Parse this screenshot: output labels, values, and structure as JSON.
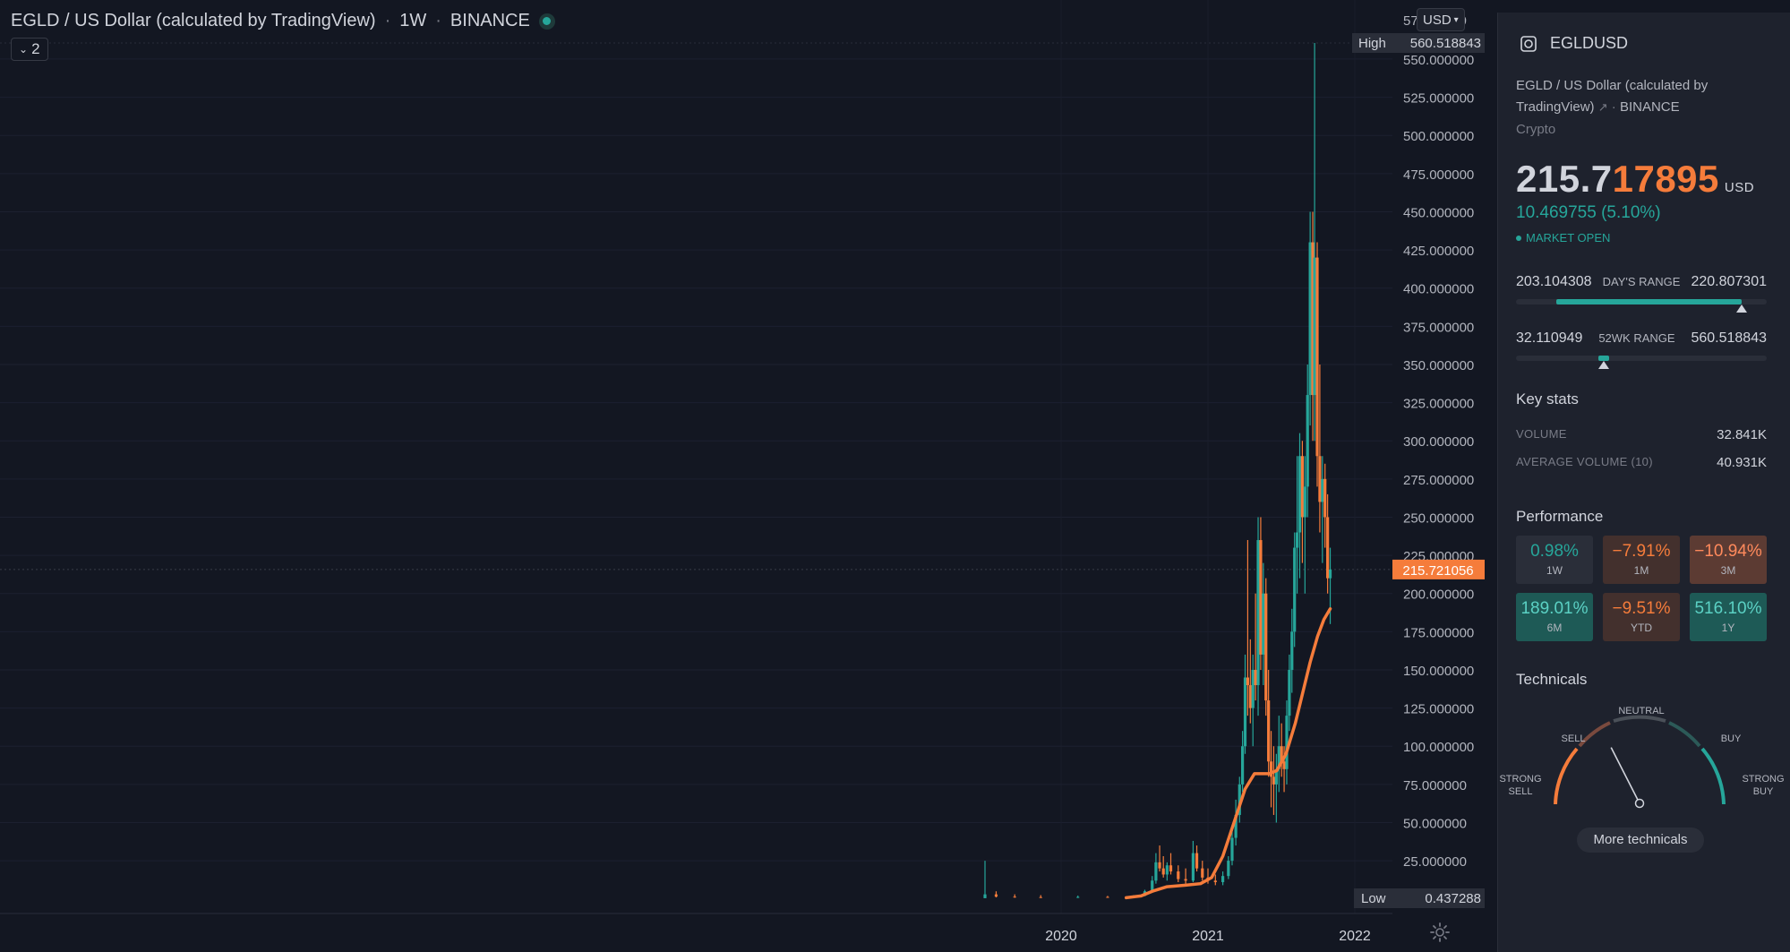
{
  "chart_header": {
    "title": "EGLD / US Dollar (calculated by TradingView)",
    "interval": "1W",
    "exchange": "BINANCE",
    "collapse_count": "2",
    "currency_button": "USD"
  },
  "chart_data": {
    "type": "candlestick",
    "x_tick_labels": [
      "2020",
      "2021",
      "2022"
    ],
    "y_tick_labels": [
      "25.000000",
      "50.000000",
      "75.000000",
      "100.000000",
      "125.000000",
      "150.000000",
      "175.000000",
      "200.000000",
      "225.000000",
      "250.000000",
      "275.000000",
      "300.000000",
      "325.000000",
      "350.000000",
      "375.000000",
      "400.000000",
      "425.000000",
      "450.000000",
      "475.000000",
      "500.000000",
      "525.000000",
      "550.000000"
    ],
    "y_ticks": [
      25,
      50,
      75,
      100,
      125,
      150,
      175,
      200,
      225,
      250,
      275,
      300,
      325,
      350,
      375,
      400,
      425,
      450,
      475,
      500,
      525,
      550
    ],
    "ylim": [
      0.437288,
      560.518843
    ],
    "high_label": "High",
    "high_value": "560.518843",
    "low_label": "Low",
    "low_value": "0.437288",
    "last_price": "215.721056",
    "overlapped_top_label": "57         00",
    "series": [
      {
        "type": "candles",
        "up_color": "#26a69a",
        "down_color": "#f57c3b",
        "candles": [
          {
            "t": 0.0,
            "o": 0.5,
            "h": 25,
            "l": 0.44,
            "c": 3.0
          },
          {
            "t": 0.03,
            "o": 3.0,
            "h": 5,
            "l": 1.0,
            "c": 1.5
          },
          {
            "t": 0.08,
            "o": 1.5,
            "h": 3,
            "l": 0.8,
            "c": 1.2
          },
          {
            "t": 0.15,
            "o": 1.2,
            "h": 2.5,
            "l": 0.7,
            "c": 1.0
          },
          {
            "t": 0.25,
            "o": 1.0,
            "h": 2.2,
            "l": 0.6,
            "c": 1.3
          },
          {
            "t": 0.33,
            "o": 1.3,
            "h": 2.0,
            "l": 0.9,
            "c": 1.1
          },
          {
            "t": 0.4,
            "o": 1.1,
            "h": 2.5,
            "l": 0.8,
            "c": 2.0
          },
          {
            "t": 0.43,
            "o": 2.0,
            "h": 6,
            "l": 1.8,
            "c": 5
          },
          {
            "t": 0.45,
            "o": 5,
            "h": 15,
            "l": 4,
            "c": 12
          },
          {
            "t": 0.46,
            "o": 12,
            "h": 30,
            "l": 10,
            "c": 24
          },
          {
            "t": 0.47,
            "o": 24,
            "h": 35,
            "l": 18,
            "c": 20
          },
          {
            "t": 0.48,
            "o": 20,
            "h": 28,
            "l": 14,
            "c": 16
          },
          {
            "t": 0.49,
            "o": 16,
            "h": 24,
            "l": 12,
            "c": 22
          },
          {
            "t": 0.5,
            "o": 22,
            "h": 30,
            "l": 16,
            "c": 18
          },
          {
            "t": 0.52,
            "o": 18,
            "h": 22,
            "l": 11,
            "c": 13
          },
          {
            "t": 0.54,
            "o": 13,
            "h": 20,
            "l": 10,
            "c": 12
          },
          {
            "t": 0.56,
            "o": 12,
            "h": 38,
            "l": 11,
            "c": 30
          },
          {
            "t": 0.57,
            "o": 30,
            "h": 35,
            "l": 18,
            "c": 20
          },
          {
            "t": 0.585,
            "o": 20,
            "h": 25,
            "l": 12,
            "c": 14
          },
          {
            "t": 0.6,
            "o": 14,
            "h": 20,
            "l": 10,
            "c": 12
          },
          {
            "t": 0.62,
            "o": 12,
            "h": 16,
            "l": 9,
            "c": 11
          },
          {
            "t": 0.64,
            "o": 11,
            "h": 18,
            "l": 9,
            "c": 15
          },
          {
            "t": 0.655,
            "o": 15,
            "h": 28,
            "l": 13,
            "c": 25
          },
          {
            "t": 0.665,
            "o": 25,
            "h": 45,
            "l": 22,
            "c": 40
          },
          {
            "t": 0.675,
            "o": 40,
            "h": 65,
            "l": 35,
            "c": 55
          },
          {
            "t": 0.685,
            "o": 55,
            "h": 80,
            "l": 50,
            "c": 75
          },
          {
            "t": 0.693,
            "o": 75,
            "h": 110,
            "l": 70,
            "c": 100
          },
          {
            "t": 0.7,
            "o": 100,
            "h": 160,
            "l": 95,
            "c": 145
          },
          {
            "t": 0.707,
            "o": 145,
            "h": 235,
            "l": 120,
            "c": 140
          },
          {
            "t": 0.714,
            "o": 140,
            "h": 170,
            "l": 115,
            "c": 125
          },
          {
            "t": 0.721,
            "o": 125,
            "h": 160,
            "l": 100,
            "c": 150
          },
          {
            "t": 0.728,
            "o": 150,
            "h": 200,
            "l": 130,
            "c": 140
          },
          {
            "t": 0.735,
            "o": 140,
            "h": 250,
            "l": 120,
            "c": 235
          },
          {
            "t": 0.742,
            "o": 235,
            "h": 250,
            "l": 150,
            "c": 160
          },
          {
            "t": 0.749,
            "o": 160,
            "h": 220,
            "l": 140,
            "c": 200
          },
          {
            "t": 0.756,
            "o": 200,
            "h": 210,
            "l": 120,
            "c": 130
          },
          {
            "t": 0.763,
            "o": 130,
            "h": 150,
            "l": 80,
            "c": 90
          },
          {
            "t": 0.77,
            "o": 90,
            "h": 110,
            "l": 60,
            "c": 80
          },
          {
            "t": 0.777,
            "o": 80,
            "h": 100,
            "l": 55,
            "c": 75
          },
          {
            "t": 0.784,
            "o": 75,
            "h": 95,
            "l": 50,
            "c": 85
          },
          {
            "t": 0.791,
            "o": 85,
            "h": 120,
            "l": 70,
            "c": 100
          },
          {
            "t": 0.798,
            "o": 100,
            "h": 115,
            "l": 80,
            "c": 90
          },
          {
            "t": 0.805,
            "o": 90,
            "h": 100,
            "l": 70,
            "c": 85
          },
          {
            "t": 0.812,
            "o": 85,
            "h": 130,
            "l": 75,
            "c": 120
          },
          {
            "t": 0.819,
            "o": 120,
            "h": 160,
            "l": 110,
            "c": 150
          },
          {
            "t": 0.826,
            "o": 150,
            "h": 190,
            "l": 135,
            "c": 175
          },
          {
            "t": 0.833,
            "o": 175,
            "h": 240,
            "l": 165,
            "c": 230
          },
          {
            "t": 0.84,
            "o": 230,
            "h": 290,
            "l": 200,
            "c": 240
          },
          {
            "t": 0.847,
            "o": 240,
            "h": 305,
            "l": 210,
            "c": 290
          },
          {
            "t": 0.854,
            "o": 290,
            "h": 300,
            "l": 220,
            "c": 250
          },
          {
            "t": 0.861,
            "o": 250,
            "h": 290,
            "l": 200,
            "c": 270
          },
          {
            "t": 0.868,
            "o": 270,
            "h": 350,
            "l": 250,
            "c": 330
          },
          {
            "t": 0.875,
            "o": 330,
            "h": 450,
            "l": 310,
            "c": 430
          },
          {
            "t": 0.882,
            "o": 430,
            "h": 450,
            "l": 300,
            "c": 330
          },
          {
            "t": 0.887,
            "o": 330,
            "h": 560.518843,
            "l": 300,
            "c": 420
          },
          {
            "t": 0.894,
            "o": 420,
            "h": 430,
            "l": 270,
            "c": 290
          },
          {
            "t": 0.901,
            "o": 290,
            "h": 350,
            "l": 240,
            "c": 260
          },
          {
            "t": 0.908,
            "o": 260,
            "h": 290,
            "l": 220,
            "c": 275
          },
          {
            "t": 0.915,
            "o": 275,
            "h": 285,
            "l": 230,
            "c": 250
          },
          {
            "t": 0.922,
            "o": 250,
            "h": 265,
            "l": 200,
            "c": 210
          },
          {
            "t": 0.929,
            "o": 210,
            "h": 230,
            "l": 180,
            "c": 215.721056
          }
        ]
      },
      {
        "type": "moving_average",
        "color": "#f57c3b",
        "points": [
          [
            0.38,
            0.8
          ],
          [
            0.42,
            2
          ],
          [
            0.45,
            5
          ],
          [
            0.49,
            8
          ],
          [
            0.54,
            9
          ],
          [
            0.58,
            10
          ],
          [
            0.61,
            14
          ],
          [
            0.64,
            28
          ],
          [
            0.67,
            50
          ],
          [
            0.7,
            72
          ],
          [
            0.725,
            82
          ],
          [
            0.745,
            82
          ],
          [
            0.765,
            82
          ],
          [
            0.785,
            84
          ],
          [
            0.81,
            95
          ],
          [
            0.835,
            115
          ],
          [
            0.855,
            135
          ],
          [
            0.875,
            155
          ],
          [
            0.895,
            172
          ],
          [
            0.912,
            183
          ],
          [
            0.929,
            190
          ]
        ]
      }
    ]
  },
  "panel": {
    "symbol": "EGLDUSD",
    "description": "EGLD / US Dollar (calculated by TradingView)",
    "exchange": "BINANCE",
    "type": "Crypto",
    "price_main": "215.7",
    "price_highlight": "17895",
    "currency": "USD",
    "change": "10.469755 (5.10%)",
    "market_status": "MARKET OPEN",
    "days_range": {
      "low": "203.104308",
      "label": "DAY'S RANGE",
      "high": "220.807301",
      "fill_from": 0.16,
      "fill_to": 0.9,
      "marker": 0.9
    },
    "wk52_range": {
      "low": "32.110949",
      "label": "52WK RANGE",
      "high": "560.518843",
      "fill_from": 0.33,
      "fill_to": 0.37,
      "marker": 0.35
    },
    "key_stats": {
      "title": "Key stats",
      "volume_label": "VOLUME",
      "volume": "32.841K",
      "avg_volume_label": "AVERAGE VOLUME (10)",
      "avg_volume": "40.931K"
    },
    "performance": {
      "title": "Performance",
      "cells": [
        {
          "value": "0.98%",
          "label": "1W",
          "kind": "neu"
        },
        {
          "value": "−7.91%",
          "label": "1M",
          "kind": "neg"
        },
        {
          "value": "−10.94%",
          "label": "3M",
          "kind": "neg strong"
        },
        {
          "value": "189.01%",
          "label": "6M",
          "kind": "pos strong"
        },
        {
          "value": "−9.51%",
          "label": "YTD",
          "kind": "neg"
        },
        {
          "value": "516.10%",
          "label": "1Y",
          "kind": "pos strong"
        }
      ]
    },
    "technicals": {
      "title": "Technicals",
      "labels": {
        "strong_sell": "STRONG\nSELL",
        "sell": "SELL",
        "neutral": "NEUTRAL",
        "buy": "BUY",
        "strong_buy": "STRONG\nBUY"
      },
      "needle_value": 0.35,
      "button": "More technicals"
    }
  }
}
